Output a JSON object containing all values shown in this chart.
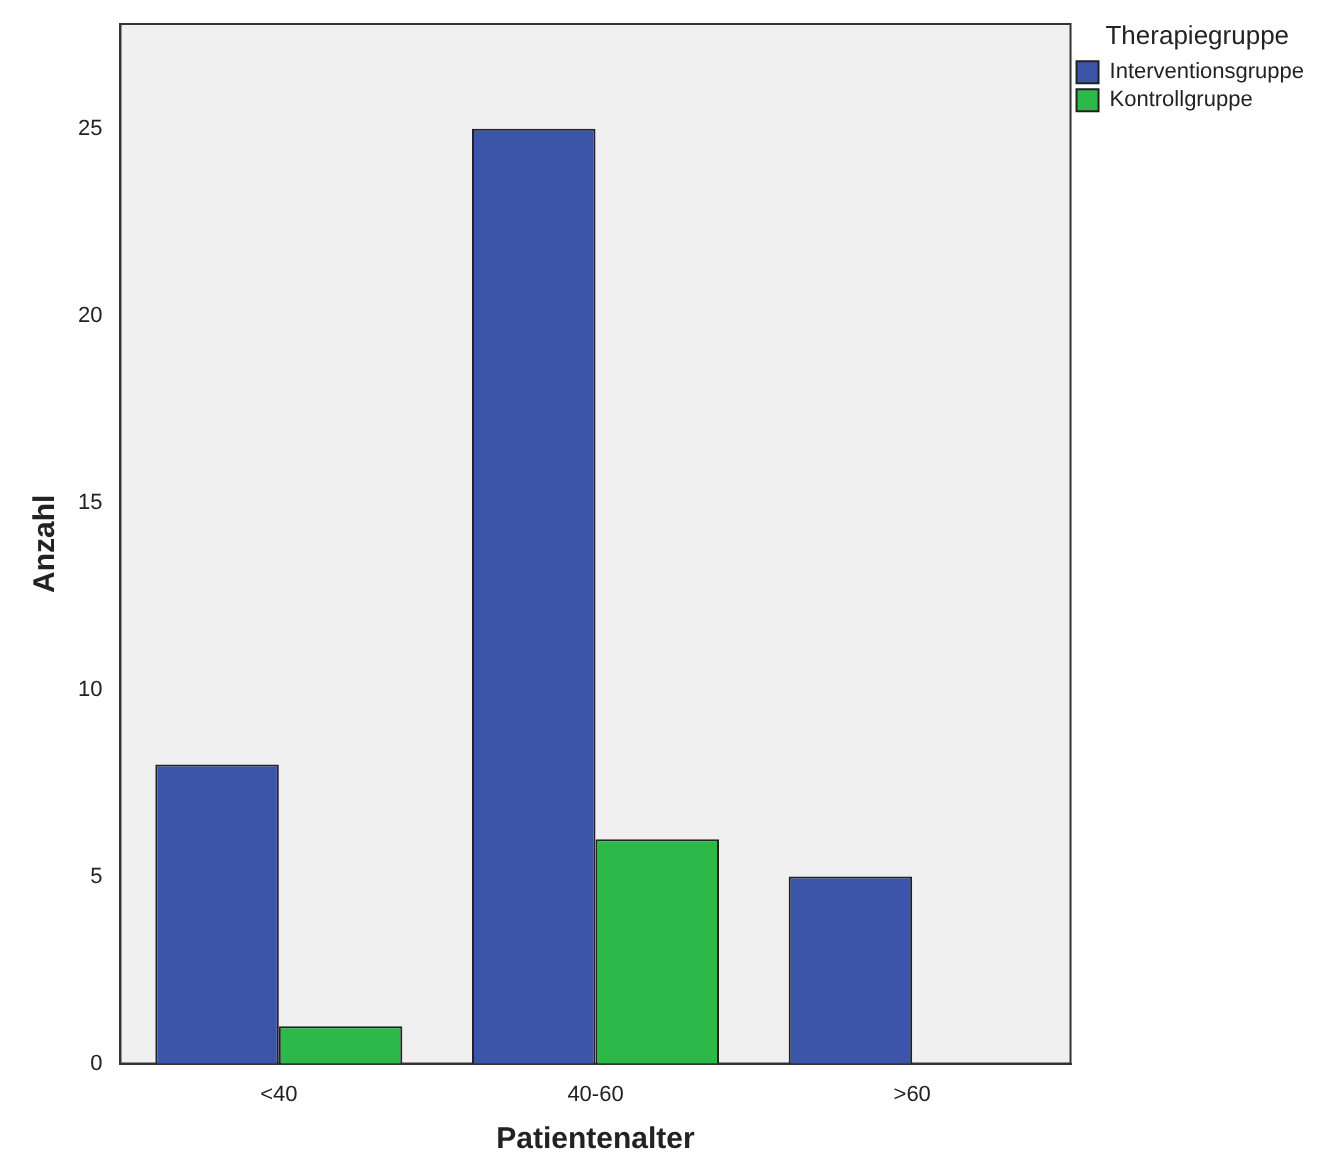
{
  "chart_data": {
    "type": "bar",
    "xlabel": "Patientenalter",
    "ylabel": "Anzahl",
    "legend_title": "Therapiegruppe",
    "categories": [
      "<40",
      "40-60",
      ">60"
    ],
    "series": [
      {
        "name": "Interventionsgruppe",
        "color": "#3d55a8",
        "values": [
          8,
          25,
          5
        ]
      },
      {
        "name": "Kontrollgruppe",
        "color": "#2db84a",
        "values": [
          1,
          6,
          null
        ]
      }
    ],
    "ylim": [
      0,
      27.8
    ],
    "yticks": [
      0,
      5,
      10,
      15,
      20,
      25
    ],
    "grid": false,
    "legend": "top right"
  }
}
